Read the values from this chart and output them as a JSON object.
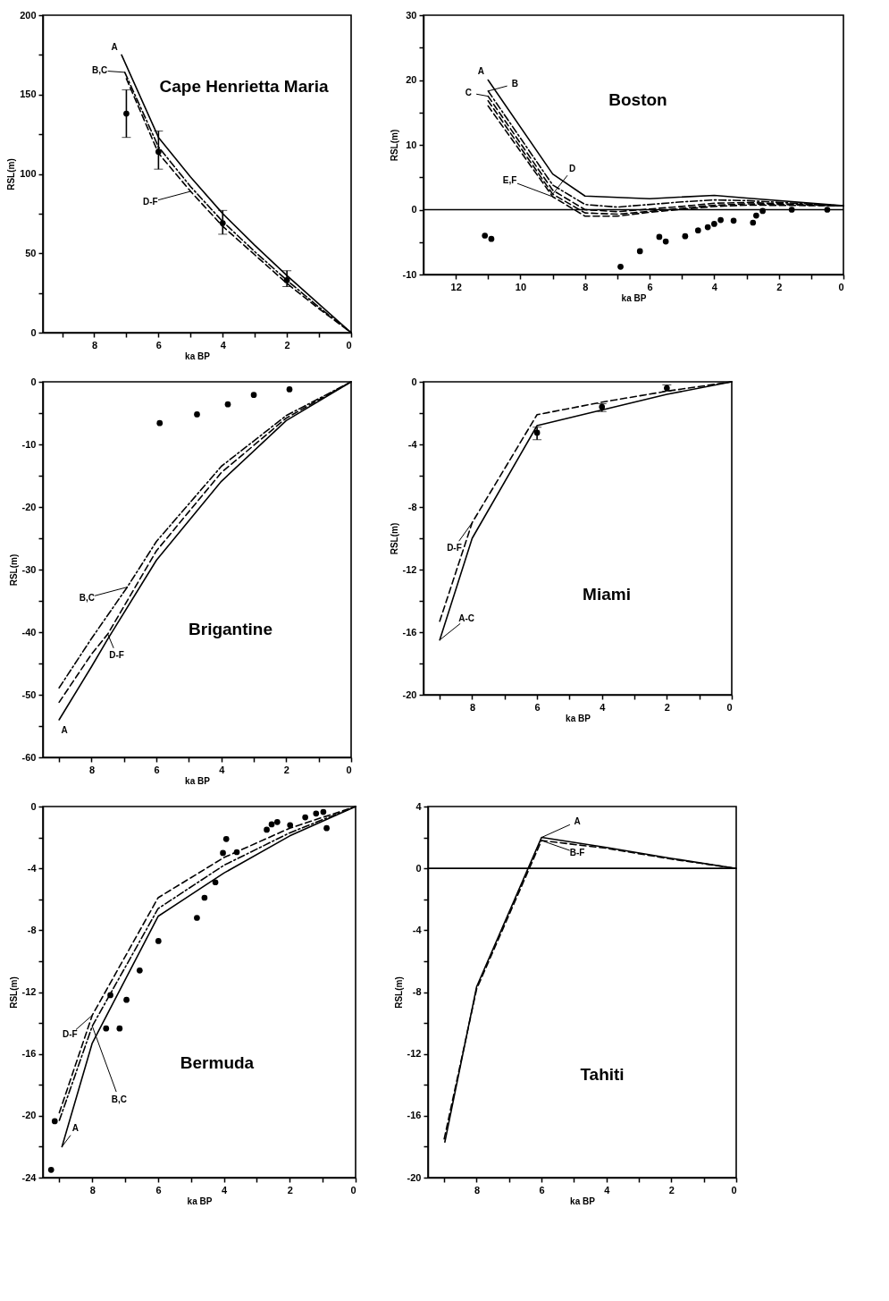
{
  "chart_data": [
    {
      "type": "line",
      "title": "Cape Henrietta Maria",
      "xlabel": "ka BP",
      "ylabel": "RSL(m)",
      "xlim": [
        9.6,
        0
      ],
      "ylim": [
        0,
        200
      ],
      "xticks": [
        {
          "value": 9,
          "label": null
        },
        8,
        {
          "value": 7,
          "label": null
        },
        6,
        {
          "value": 5,
          "label": null
        },
        4,
        {
          "value": 3,
          "label": null
        },
        2,
        {
          "value": 1,
          "label": null
        },
        0
      ],
      "yticks": [
        0,
        {
          "value": 25,
          "label": null
        },
        50,
        {
          "value": 75,
          "label": null
        },
        100,
        {
          "value": 125,
          "label": null
        },
        150,
        {
          "value": 175,
          "label": null
        },
        200
      ],
      "series": [
        {
          "line_style": "solid",
          "color": "#000000",
          "x": [
            7.15,
            6,
            5,
            4,
            3,
            2,
            1,
            0
          ],
          "values": [
            175,
            123,
            98,
            75,
            55,
            36,
            18,
            0
          ]
        },
        {
          "line_style": "dotted",
          "color": "#000000",
          "x": [
            7.05,
            6,
            5,
            4,
            3,
            2,
            1,
            0
          ],
          "values": [
            164,
            117,
            92,
            70,
            51,
            33,
            16,
            0
          ]
        },
        {
          "line_style": "dashed",
          "color": "#000000",
          "x": [
            7,
            6,
            5,
            4,
            3,
            2,
            1,
            0
          ],
          "values": [
            160,
            113,
            89,
            67,
            49,
            31,
            15,
            0
          ]
        },
        {
          "type": "scatter",
          "marker": "circle",
          "color": "#000000",
          "x": [
            7,
            6,
            4,
            2
          ],
          "values": [
            138,
            114,
            69,
            33
          ],
          "errors": [
            [
              123,
              153
            ],
            [
              103,
              127
            ],
            [
              62,
              77
            ],
            [
              29,
              39
            ]
          ]
        }
      ],
      "annotations": [
        {
          "text": "A",
          "x": 7.15,
          "y": 175
        },
        {
          "text": "B,C",
          "x": 7.05,
          "y": 164
        },
        {
          "text": "D-F",
          "x": 5,
          "y": 89
        }
      ]
    },
    {
      "type": "line",
      "title": "Boston",
      "xlabel": "ka BP",
      "ylabel": "RSL(m)",
      "xlim": [
        13,
        0
      ],
      "ylim": [
        -10,
        30
      ],
      "xticks": [
        12,
        {
          "value": 11,
          "label": null
        },
        10,
        {
          "value": 9,
          "label": null
        },
        8,
        {
          "value": 7,
          "label": null
        },
        6,
        {
          "value": 5,
          "label": null
        },
        4,
        {
          "value": 3,
          "label": null
        },
        2,
        {
          "value": 1,
          "label": null
        },
        0
      ],
      "yticks": [
        -10,
        {
          "value": -5,
          "label": null
        },
        0,
        {
          "value": 5,
          "label": null
        },
        10,
        {
          "value": 15,
          "label": null
        },
        20,
        {
          "value": 25,
          "label": null
        },
        30
      ],
      "series": [
        {
          "line_style": "solid",
          "color": "#000000",
          "x": [
            11,
            9,
            8,
            6,
            4,
            3,
            0
          ],
          "values": [
            20,
            5.5,
            2.1,
            1.7,
            2.2,
            1.8,
            0.6
          ]
        },
        {
          "line_style": "dotted",
          "color": "#000000",
          "x": [
            11,
            9,
            8,
            7,
            5,
            4,
            3,
            0
          ],
          "values": [
            18.3,
            3.8,
            0.8,
            0.4,
            1.2,
            1.5,
            1.4,
            0.6
          ]
        },
        {
          "line_style": "dashed",
          "color": "#000000",
          "x": [
            11,
            9,
            8,
            7,
            5,
            4,
            3,
            0
          ],
          "values": [
            17.5,
            3,
            0,
            -0.3,
            0.5,
            1,
            1.1,
            0.6
          ]
        },
        {
          "line_style": "dashed",
          "color": "#000000",
          "x": [
            11,
            9,
            8,
            7,
            5,
            4,
            3,
            0
          ],
          "values": [
            16.8,
            2.4,
            -0.5,
            -0.7,
            0.2,
            0.7,
            0.9,
            0.6
          ]
        },
        {
          "line_style": "dashed",
          "color": "#000000",
          "x": [
            11,
            9,
            8,
            7,
            6,
            4,
            3,
            0
          ],
          "values": [
            16,
            2,
            -1,
            -1,
            -0.4,
            0.5,
            0.7,
            0.6
          ]
        },
        {
          "type": "scatter",
          "marker": "circle",
          "color": "#000000",
          "x": [
            11.1,
            10.9,
            6.9,
            6.3,
            5.7,
            5.5,
            4.9,
            4.5,
            4.2,
            4,
            3.8,
            3.4,
            2.8,
            2.7,
            2.5,
            1.6,
            0.5
          ],
          "values": [
            -4,
            -4.5,
            -8.8,
            -6.4,
            -4.2,
            -4.9,
            -4.1,
            -3.2,
            -2.7,
            -2.2,
            -1.6,
            -1.7,
            -2,
            -0.9,
            -0.2,
            0,
            0
          ]
        }
      ],
      "ref_lines": [
        {
          "axis": "y",
          "value": 0,
          "color": "#000000"
        }
      ],
      "annotations": [
        {
          "text": "A",
          "x": 11,
          "y": 20
        },
        {
          "text": "B",
          "x": 11,
          "y": 18.3
        },
        {
          "text": "C",
          "x": 11,
          "y": 17.5
        },
        {
          "text": "D",
          "x": 9,
          "y": 2.4
        },
        {
          "text": "E,F",
          "x": 9,
          "y": 2
        }
      ]
    },
    {
      "type": "line",
      "title": "Brigantine",
      "xlabel": "ka BP",
      "ylabel": "RSL(m)",
      "xlim": [
        9.5,
        0
      ],
      "ylim": [
        -60,
        0
      ],
      "xticks": [
        {
          "value": 9,
          "label": null
        },
        8,
        {
          "value": 7,
          "label": null
        },
        6,
        {
          "value": 5,
          "label": null
        },
        4,
        {
          "value": 3,
          "label": null
        },
        2,
        {
          "value": 1,
          "label": null
        },
        0
      ],
      "yticks": [
        -60,
        {
          "value": -55,
          "label": null
        },
        -50,
        {
          "value": -45,
          "label": null
        },
        -40,
        {
          "value": -35,
          "label": null
        },
        -30,
        {
          "value": -25,
          "label": null
        },
        -20,
        {
          "value": -15,
          "label": null
        },
        -10,
        {
          "value": -5,
          "label": null
        },
        0
      ],
      "series": [
        {
          "line_style": "solid",
          "color": "#000000",
          "x": [
            9,
            8,
            7.5,
            6,
            4,
            2,
            0
          ],
          "values": [
            -54,
            -45.5,
            -41.1,
            -28.5,
            -15.9,
            -6.2,
            0
          ]
        },
        {
          "line_style": "dotted",
          "color": "#000000",
          "x": [
            9,
            8,
            6.9,
            6,
            4,
            2,
            0
          ],
          "values": [
            -48.9,
            -41,
            -32.8,
            -25.5,
            -13.5,
            -5.4,
            0
          ]
        },
        {
          "line_style": "dashed",
          "color": "#000000",
          "x": [
            9,
            8,
            7.5,
            6,
            4,
            2,
            0
          ],
          "values": [
            -51.2,
            -43.5,
            -40.3,
            -27,
            -14.5,
            -5.8,
            0
          ]
        },
        {
          "type": "scatter",
          "marker": "circle",
          "color": "#000000",
          "x": [
            5.9,
            4.75,
            3.8,
            3,
            1.9
          ],
          "values": [
            -6.6,
            -5.2,
            -3.6,
            -2.1,
            -1.2
          ]
        }
      ],
      "annotations": [
        {
          "text": "B,C",
          "x": 6.9,
          "y": -32.8
        },
        {
          "text": "D-F",
          "x": 7.5,
          "y": -40.3
        },
        {
          "text": "A",
          "x": 9,
          "y": -54
        }
      ]
    },
    {
      "type": "line",
      "title": "Miami",
      "xlabel": "ka BP",
      "ylabel": "RSL(m)",
      "xlim": [
        9.5,
        0
      ],
      "ylim": [
        -20,
        0
      ],
      "xticks": [
        {
          "value": 9,
          "label": null
        },
        8,
        {
          "value": 7,
          "label": null
        },
        6,
        {
          "value": 5,
          "label": null
        },
        4,
        {
          "value": 3,
          "label": null
        },
        2,
        {
          "value": 1,
          "label": null
        },
        0
      ],
      "yticks": [
        -20,
        {
          "value": -18,
          "label": null
        },
        -16,
        {
          "value": -14,
          "label": null
        },
        -12,
        {
          "value": -10,
          "label": null
        },
        -8,
        {
          "value": -6,
          "label": null
        },
        -4,
        {
          "value": -2,
          "label": null
        },
        0
      ],
      "series": [
        {
          "line_style": "solid",
          "color": "#000000",
          "x": [
            9,
            8,
            6,
            4,
            2,
            0
          ],
          "values": [
            -16.5,
            -10,
            -2.8,
            -1.8,
            -0.8,
            0
          ]
        },
        {
          "line_style": "dashed",
          "color": "#000000",
          "x": [
            9,
            8,
            6,
            4,
            2,
            0
          ],
          "values": [
            -15.3,
            -9,
            -2.1,
            -1.3,
            -0.6,
            0
          ]
        },
        {
          "type": "scatter",
          "marker": "circle",
          "color": "#000000",
          "x": [
            6,
            4,
            2
          ],
          "values": [
            -3.25,
            -1.6,
            -0.4
          ],
          "errors": [
            [
              -3.7,
              -2.9
            ],
            [
              -1.9,
              -1.4
            ],
            [
              -0.6,
              -0.2
            ]
          ]
        }
      ],
      "annotations": [
        {
          "text": "D-F",
          "x": 8,
          "y": -9
        },
        {
          "text": "A-C",
          "x": 9,
          "y": -16.5
        }
      ]
    },
    {
      "type": "line",
      "title": "Bermuda",
      "xlabel": "ka BP",
      "ylabel": "RSL(m)",
      "xlim": [
        9.5,
        0
      ],
      "ylim": [
        -24,
        0
      ],
      "xticks": [
        {
          "value": 9,
          "label": null
        },
        8,
        {
          "value": 7,
          "label": null
        },
        6,
        {
          "value": 5,
          "label": null
        },
        4,
        {
          "value": 3,
          "label": null
        },
        2,
        {
          "value": 1,
          "label": null
        },
        0
      ],
      "yticks": [
        -24,
        {
          "value": -22,
          "label": null
        },
        -20,
        {
          "value": -18,
          "label": null
        },
        -16,
        {
          "value": -14,
          "label": null
        },
        -12,
        {
          "value": -10,
          "label": null
        },
        -8,
        {
          "value": -6,
          "label": null
        },
        -4,
        {
          "value": -2,
          "label": null
        },
        0
      ],
      "series": [
        {
          "line_style": "solid",
          "color": "#000000",
          "x": [
            8.92,
            8,
            6,
            4,
            2,
            0
          ],
          "values": [
            -22,
            -15.3,
            -7.1,
            -4.3,
            -1.9,
            0
          ]
        },
        {
          "line_style": "dotted",
          "color": "#000000",
          "x": [
            9,
            8,
            6,
            4,
            2,
            0
          ],
          "values": [
            -20.3,
            -14.2,
            -6.6,
            -3.8,
            -1.7,
            0
          ]
        },
        {
          "line_style": "dashed",
          "color": "#000000",
          "x": [
            9,
            8,
            6,
            4,
            2,
            0
          ],
          "values": [
            -19.8,
            -13.5,
            -5.9,
            -3.3,
            -1.4,
            0
          ]
        },
        {
          "type": "scatter",
          "marker": "circle",
          "color": "#000000",
          "x": [
            9.14,
            9.25,
            7.58,
            7.17,
            7.45,
            6.96,
            6.56,
            5.99,
            4.82,
            4.59,
            4.26,
            4.03,
            3.93,
            3.61,
            2.7,
            2.55,
            2.38,
            1.99,
            1.53,
            1.2,
            0.98,
            0.88
          ],
          "values": [
            -20.35,
            -23.5,
            -14.35,
            -14.35,
            -12.2,
            -12.5,
            -10.6,
            -8.7,
            -7.2,
            -5.9,
            -4.9,
            -3,
            -2.1,
            -2.95,
            -1.5,
            -1.15,
            -1,
            -1.2,
            -0.7,
            -0.45,
            -0.35,
            -1.4
          ]
        }
      ],
      "annotations": [
        {
          "text": "D-F",
          "x": 8,
          "y": -13.5
        },
        {
          "text": "B,C",
          "x": 8,
          "y": -14.2
        },
        {
          "text": "A",
          "x": 8.92,
          "y": -22
        }
      ]
    },
    {
      "type": "line",
      "title": "Tahiti",
      "xlabel": "ka BP",
      "ylabel": "RSL(m)",
      "xlim": [
        9.5,
        0
      ],
      "ylim": [
        -20,
        4
      ],
      "xticks": [
        {
          "value": 9,
          "label": null
        },
        8,
        {
          "value": 7,
          "label": null
        },
        6,
        {
          "value": 5,
          "label": null
        },
        4,
        {
          "value": 3,
          "label": null
        },
        2,
        {
          "value": 1,
          "label": null
        },
        0
      ],
      "yticks": [
        -20,
        {
          "value": -18,
          "label": null
        },
        -16,
        {
          "value": -14,
          "label": null
        },
        -12,
        {
          "value": -10,
          "label": null
        },
        -8,
        {
          "value": -6,
          "label": null
        },
        -4,
        {
          "value": -2,
          "label": null
        },
        0,
        {
          "value": 2,
          "label": null
        },
        4
      ],
      "series": [
        {
          "line_style": "solid",
          "color": "#000000",
          "x": [
            8.98,
            8,
            6,
            4,
            2,
            0
          ],
          "values": [
            -17.7,
            -7.65,
            2,
            1.35,
            0.65,
            0
          ]
        },
        {
          "line_style": "dashed",
          "color": "#000000",
          "x": [
            9,
            8,
            6,
            4,
            2,
            0
          ],
          "values": [
            -17.5,
            -7.8,
            1.8,
            1.3,
            0.6,
            0
          ]
        }
      ],
      "ref_lines": [
        {
          "axis": "y",
          "value": 0,
          "color": "#000000"
        }
      ],
      "annotations": [
        {
          "text": "A",
          "x": 6,
          "y": 2
        },
        {
          "text": "B-F",
          "x": 6,
          "y": 1.8
        }
      ]
    }
  ]
}
